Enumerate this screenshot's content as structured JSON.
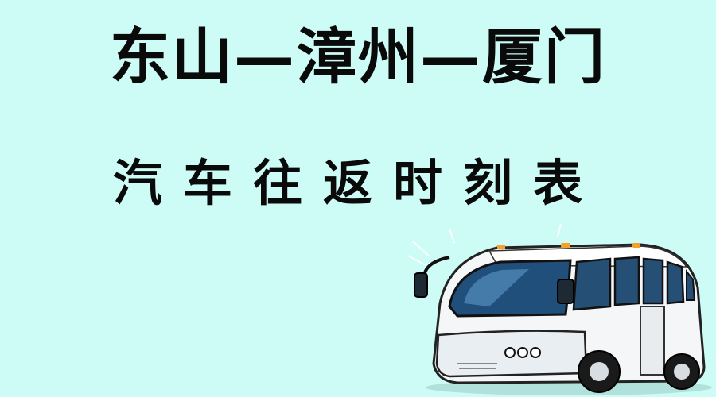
{
  "title": "东山—漳州—厦门",
  "subtitle": "汽车往返时刻表",
  "background_color": "#ccfcf5",
  "illustration": "bus-illustration"
}
